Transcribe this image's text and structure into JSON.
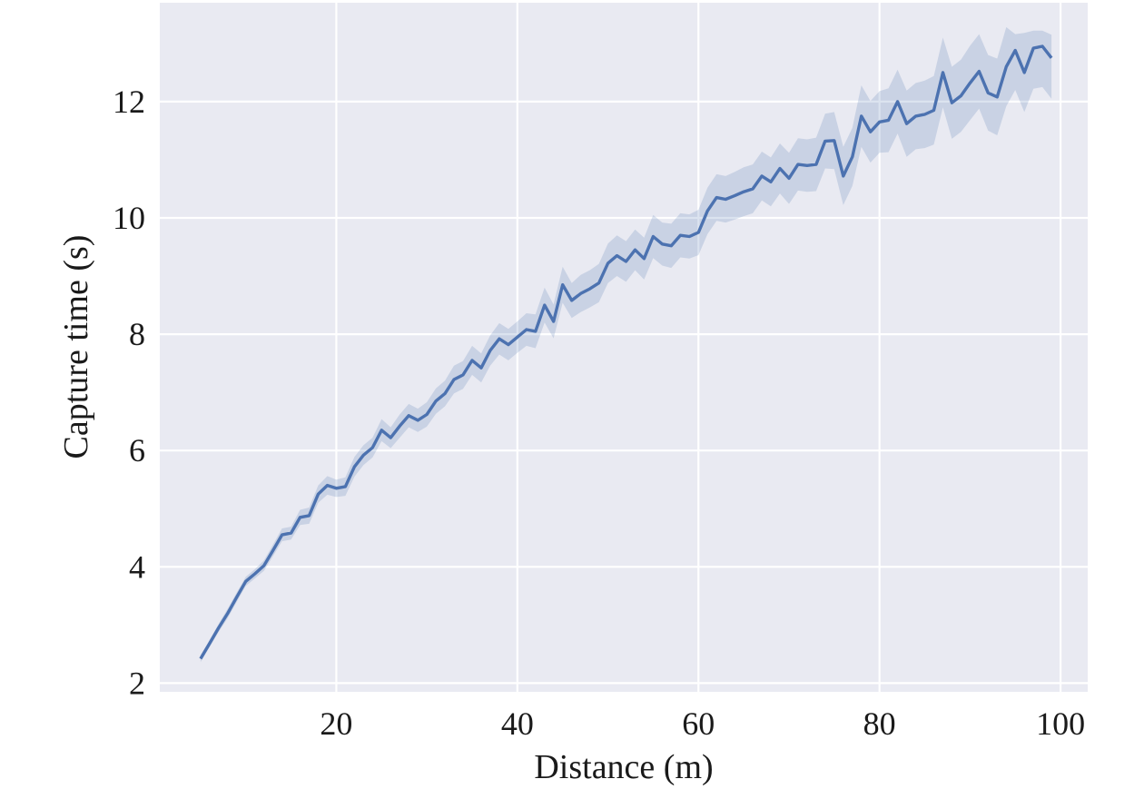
{
  "chart_data": {
    "type": "line",
    "xlabel": "Distance (m)",
    "ylabel": "Capture time (s)",
    "xlim": [
      0.5,
      103
    ],
    "ylim": [
      1.85,
      13.7
    ],
    "x_ticks": [
      20,
      40,
      60,
      80,
      100
    ],
    "y_ticks": [
      2,
      4,
      6,
      8,
      10,
      12
    ],
    "grid": true,
    "legend": "none",
    "colors": {
      "background": "#e9eaf2",
      "grid": "#ffffff",
      "line": "#4c72b0",
      "band": "#4c72b0"
    },
    "series": [
      {
        "x": [
          5,
          6,
          7,
          8,
          9,
          10,
          11,
          12,
          13,
          14,
          15,
          16,
          17,
          18,
          19,
          20,
          21,
          22,
          23,
          24,
          25,
          26,
          27,
          28,
          29,
          30,
          31,
          32,
          33,
          34,
          35,
          36,
          37,
          38,
          39,
          40,
          41,
          42,
          43,
          44,
          45,
          46,
          47,
          48,
          49,
          50,
          51,
          52,
          53,
          54,
          55,
          56,
          57,
          58,
          59,
          60,
          61,
          62,
          63,
          64,
          65,
          66,
          67,
          68,
          69,
          70,
          71,
          72,
          73,
          74,
          75,
          76,
          77,
          78,
          79,
          80,
          81,
          82,
          83,
          84,
          85,
          86,
          87,
          88,
          89,
          90,
          91,
          92,
          93,
          94,
          95,
          96,
          97,
          98,
          99
        ],
        "y": [
          2.42,
          2.68,
          2.95,
          3.2,
          3.48,
          3.75,
          3.88,
          4.02,
          4.28,
          4.55,
          4.58,
          4.85,
          4.88,
          5.25,
          5.4,
          5.35,
          5.38,
          5.72,
          5.92,
          6.05,
          6.35,
          6.22,
          6.42,
          6.6,
          6.52,
          6.62,
          6.85,
          6.98,
          7.22,
          7.3,
          7.55,
          7.42,
          7.72,
          7.92,
          7.82,
          7.95,
          8.08,
          8.05,
          8.5,
          8.22,
          8.85,
          8.58,
          8.7,
          8.78,
          8.88,
          9.22,
          9.35,
          9.25,
          9.45,
          9.3,
          9.68,
          9.55,
          9.52,
          9.7,
          9.68,
          9.75,
          10.12,
          10.35,
          10.32,
          10.38,
          10.45,
          10.5,
          10.72,
          10.62,
          10.85,
          10.68,
          10.92,
          10.9,
          10.92,
          11.32,
          11.33,
          10.72,
          11.05,
          11.75,
          11.48,
          11.65,
          11.68,
          12.0,
          11.62,
          11.75,
          11.78,
          11.85,
          12.5,
          11.98,
          12.1,
          12.32,
          12.52,
          12.15,
          12.08,
          12.6,
          12.88,
          12.5,
          12.92,
          12.95,
          12.75
        ],
        "ci_lower": [
          2.36,
          2.62,
          2.88,
          3.12,
          3.4,
          3.67,
          3.8,
          3.93,
          4.18,
          4.44,
          4.47,
          4.72,
          4.74,
          5.1,
          5.24,
          5.2,
          5.22,
          5.55,
          5.75,
          5.88,
          6.16,
          6.04,
          6.22,
          6.4,
          6.32,
          6.41,
          6.63,
          6.76,
          6.98,
          7.06,
          7.3,
          7.17,
          7.46,
          7.65,
          7.55,
          7.68,
          7.8,
          7.76,
          8.2,
          7.93,
          8.54,
          8.28,
          8.38,
          8.46,
          8.55,
          8.88,
          9.0,
          8.9,
          9.1,
          8.94,
          9.31,
          9.18,
          9.14,
          9.32,
          9.3,
          9.36,
          9.72,
          9.95,
          9.92,
          9.97,
          10.03,
          10.08,
          10.3,
          10.2,
          10.42,
          10.24,
          10.47,
          10.45,
          10.46,
          10.85,
          10.84,
          10.22,
          10.55,
          11.22,
          10.95,
          11.12,
          11.13,
          11.45,
          11.05,
          11.18,
          11.2,
          11.26,
          11.9,
          11.36,
          11.48,
          11.68,
          11.88,
          11.5,
          11.42,
          11.92,
          12.2,
          11.82,
          12.22,
          12.25,
          12.05
        ],
        "ci_upper": [
          2.48,
          2.74,
          3.02,
          3.28,
          3.56,
          3.83,
          3.96,
          4.11,
          4.38,
          4.66,
          4.69,
          4.98,
          5.02,
          5.4,
          5.56,
          5.5,
          5.54,
          5.89,
          6.09,
          6.22,
          6.54,
          6.4,
          6.62,
          6.8,
          6.72,
          6.83,
          7.07,
          7.2,
          7.46,
          7.54,
          7.8,
          7.67,
          7.98,
          8.19,
          8.09,
          8.22,
          8.36,
          8.34,
          8.8,
          8.51,
          9.16,
          8.88,
          9.02,
          9.1,
          9.21,
          9.56,
          9.7,
          9.6,
          9.8,
          9.66,
          10.05,
          9.92,
          9.9,
          10.08,
          10.06,
          10.14,
          10.52,
          10.75,
          10.72,
          10.79,
          10.87,
          10.92,
          11.14,
          11.04,
          11.28,
          11.12,
          11.37,
          11.35,
          11.38,
          11.79,
          11.82,
          11.22,
          11.55,
          12.28,
          12.01,
          12.18,
          12.23,
          12.55,
          12.19,
          12.32,
          12.36,
          12.44,
          13.1,
          12.6,
          12.72,
          12.96,
          13.16,
          12.8,
          12.74,
          13.28,
          13.16,
          13.18,
          13.22,
          13.22,
          13.15
        ]
      }
    ]
  }
}
